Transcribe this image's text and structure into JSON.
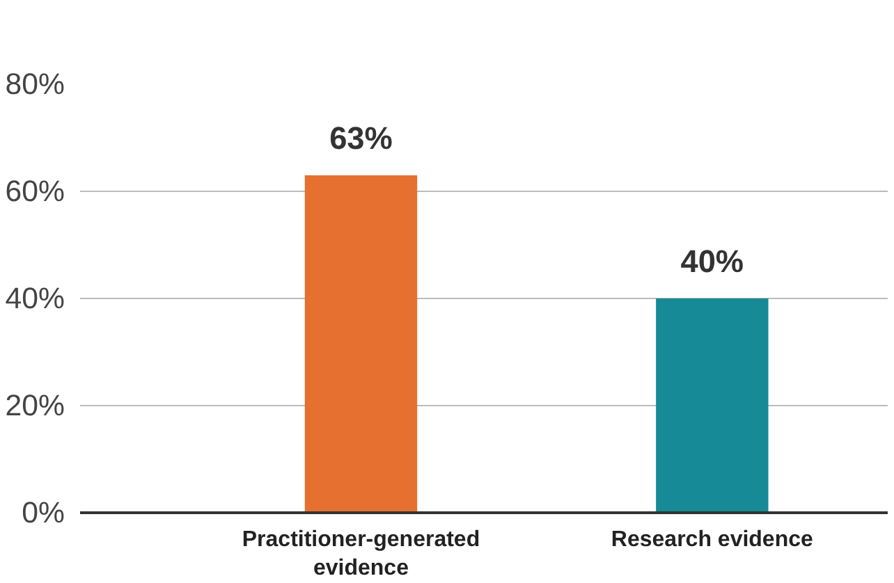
{
  "chart_data": {
    "type": "bar",
    "categories": [
      "Practitioner-generated evidence",
      "Research evidence"
    ],
    "values": [
      63,
      40
    ],
    "colors": [
      "#e5702f",
      "#168a96"
    ],
    "ylim": [
      0,
      80
    ],
    "yticks": [
      {
        "value": 0,
        "label": "0%"
      },
      {
        "value": 20,
        "label": "20%"
      },
      {
        "value": 40,
        "label": "40%"
      },
      {
        "value": 60,
        "label": "60%"
      },
      {
        "value": 80,
        "label": "80%"
      }
    ],
    "value_labels": [
      "63%",
      "40%"
    ],
    "grid": "y"
  }
}
